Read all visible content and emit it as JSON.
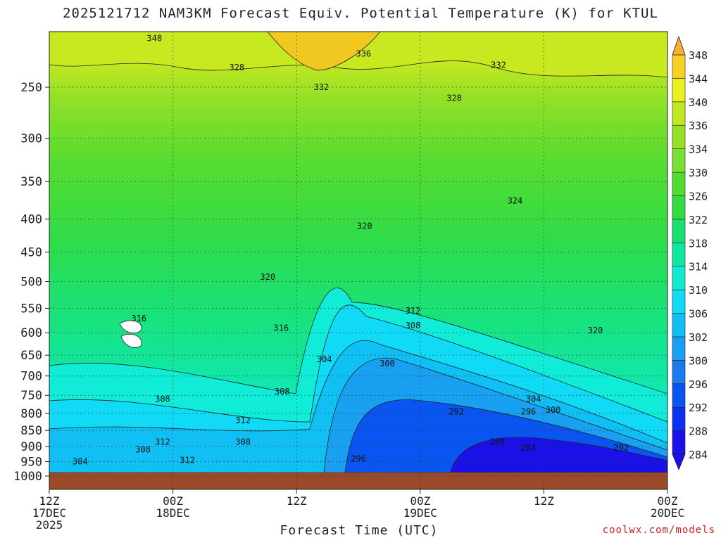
{
  "chart_data": {
    "type": "heatmap",
    "title": "2025121712 NAM3KM Forecast Equiv. Potential Temperature (K) for KTUL",
    "xlabel": "Forecast Time (UTC)",
    "ylabel": "",
    "x_ticks": [
      {
        "hours": 0,
        "line1": "12Z",
        "line2": "17DEC",
        "line3": "2025"
      },
      {
        "hours": 12,
        "line1": "00Z",
        "line2": "18DEC",
        "line3": ""
      },
      {
        "hours": 24,
        "line1": "12Z",
        "line2": "",
        "line3": ""
      },
      {
        "hours": 36,
        "line1": "00Z",
        "line2": "19DEC",
        "line3": ""
      },
      {
        "hours": 48,
        "line1": "12Z",
        "line2": "",
        "line3": ""
      },
      {
        "hours": 60,
        "line1": "00Z",
        "line2": "20DEC",
        "line3": ""
      }
    ],
    "xlim": [
      0,
      60
    ],
    "ylim": [
      1000,
      200
    ],
    "y_scale": "log-pressure",
    "y_ticks": [
      250,
      300,
      350,
      400,
      450,
      500,
      550,
      600,
      650,
      700,
      750,
      800,
      850,
      900,
      950,
      1000
    ],
    "grid": true,
    "colorbar": {
      "levels": [
        284,
        288,
        292,
        296,
        300,
        302,
        306,
        310,
        314,
        318,
        322,
        326,
        330,
        334,
        336,
        340,
        344,
        348
      ],
      "colors": [
        "#1a10e8",
        "#0a30f0",
        "#0a55f0",
        "#1a7af0",
        "#1aa0f0",
        "#10c0f5",
        "#10daf5",
        "#10ecd0",
        "#10e8a0",
        "#18e070",
        "#30dc40",
        "#50dc30",
        "#78e030",
        "#98e028",
        "#c0e820",
        "#e8f020",
        "#f8d020",
        "#f4b030"
      ]
    },
    "contour_labels": [
      {
        "hours": 10.2,
        "p": 210,
        "text": "340"
      },
      {
        "hours": 30.5,
        "p": 222,
        "text": "336"
      },
      {
        "hours": 18.2,
        "p": 233,
        "text": "328"
      },
      {
        "hours": 43.6,
        "p": 231,
        "text": "332"
      },
      {
        "hours": 26.4,
        "p": 250,
        "text": "332"
      },
      {
        "hours": 39.3,
        "p": 260,
        "text": "328"
      },
      {
        "hours": 45.2,
        "p": 375,
        "text": "324"
      },
      {
        "hours": 30.6,
        "p": 410,
        "text": "320"
      },
      {
        "hours": 21.2,
        "p": 492,
        "text": "320"
      },
      {
        "hours": 8.7,
        "p": 570,
        "text": "316"
      },
      {
        "hours": 22.5,
        "p": 590,
        "text": "316"
      },
      {
        "hours": 35.3,
        "p": 555,
        "text": "312"
      },
      {
        "hours": 35.3,
        "p": 585,
        "text": "308"
      },
      {
        "hours": 53.0,
        "p": 595,
        "text": "320"
      },
      {
        "hours": 26.7,
        "p": 660,
        "text": "304"
      },
      {
        "hours": 32.8,
        "p": 670,
        "text": "300"
      },
      {
        "hours": 22.6,
        "p": 740,
        "text": "308"
      },
      {
        "hours": 11.0,
        "p": 760,
        "text": "308"
      },
      {
        "hours": 47.0,
        "p": 760,
        "text": "304"
      },
      {
        "hours": 48.9,
        "p": 790,
        "text": "300"
      },
      {
        "hours": 46.5,
        "p": 795,
        "text": "296"
      },
      {
        "hours": 39.5,
        "p": 795,
        "text": "292"
      },
      {
        "hours": 18.8,
        "p": 820,
        "text": "312"
      },
      {
        "hours": 11.0,
        "p": 885,
        "text": "312"
      },
      {
        "hours": 18.8,
        "p": 885,
        "text": "308"
      },
      {
        "hours": 43.5,
        "p": 885,
        "text": "288"
      },
      {
        "hours": 46.5,
        "p": 905,
        "text": "284"
      },
      {
        "hours": 55.5,
        "p": 905,
        "text": "292"
      },
      {
        "hours": 9.1,
        "p": 910,
        "text": "308"
      },
      {
        "hours": 13.4,
        "p": 945,
        "text": "312"
      },
      {
        "hours": 3.0,
        "p": 950,
        "text": "304"
      },
      {
        "hours": 30.0,
        "p": 940,
        "text": "296"
      }
    ]
  },
  "credit": "coolwx.com/models"
}
